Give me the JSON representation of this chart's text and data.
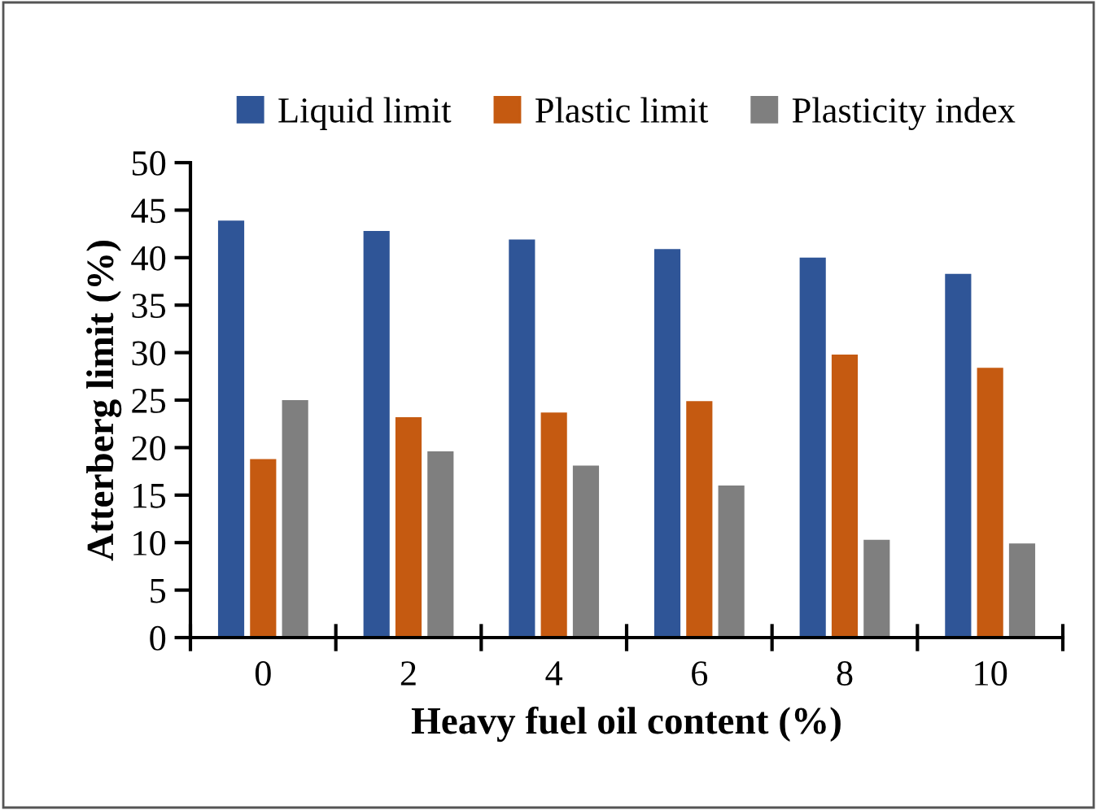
{
  "chart_data": {
    "type": "bar",
    "xlabel": "Heavy fuel oil content (%)",
    "ylabel": "Atterberg limit (%)",
    "categories": [
      "0",
      "2",
      "4",
      "6",
      "8",
      "10"
    ],
    "series": [
      {
        "name": "Liquid limit",
        "color": "#2f5597",
        "values": [
          43.9,
          42.8,
          41.9,
          40.9,
          40.0,
          38.3
        ]
      },
      {
        "name": "Plastic limit",
        "color": "#c55a11",
        "values": [
          18.8,
          23.2,
          23.7,
          24.9,
          29.8,
          28.4
        ]
      },
      {
        "name": "Plasticity index",
        "color": "#7f7f7f",
        "values": [
          25.0,
          19.6,
          18.1,
          16.0,
          10.3,
          9.9
        ]
      }
    ],
    "ylim": [
      0,
      50
    ],
    "yticks": [
      0,
      5,
      10,
      15,
      20,
      25,
      30,
      35,
      40,
      45,
      50
    ],
    "grid": false,
    "legend": "top"
  }
}
